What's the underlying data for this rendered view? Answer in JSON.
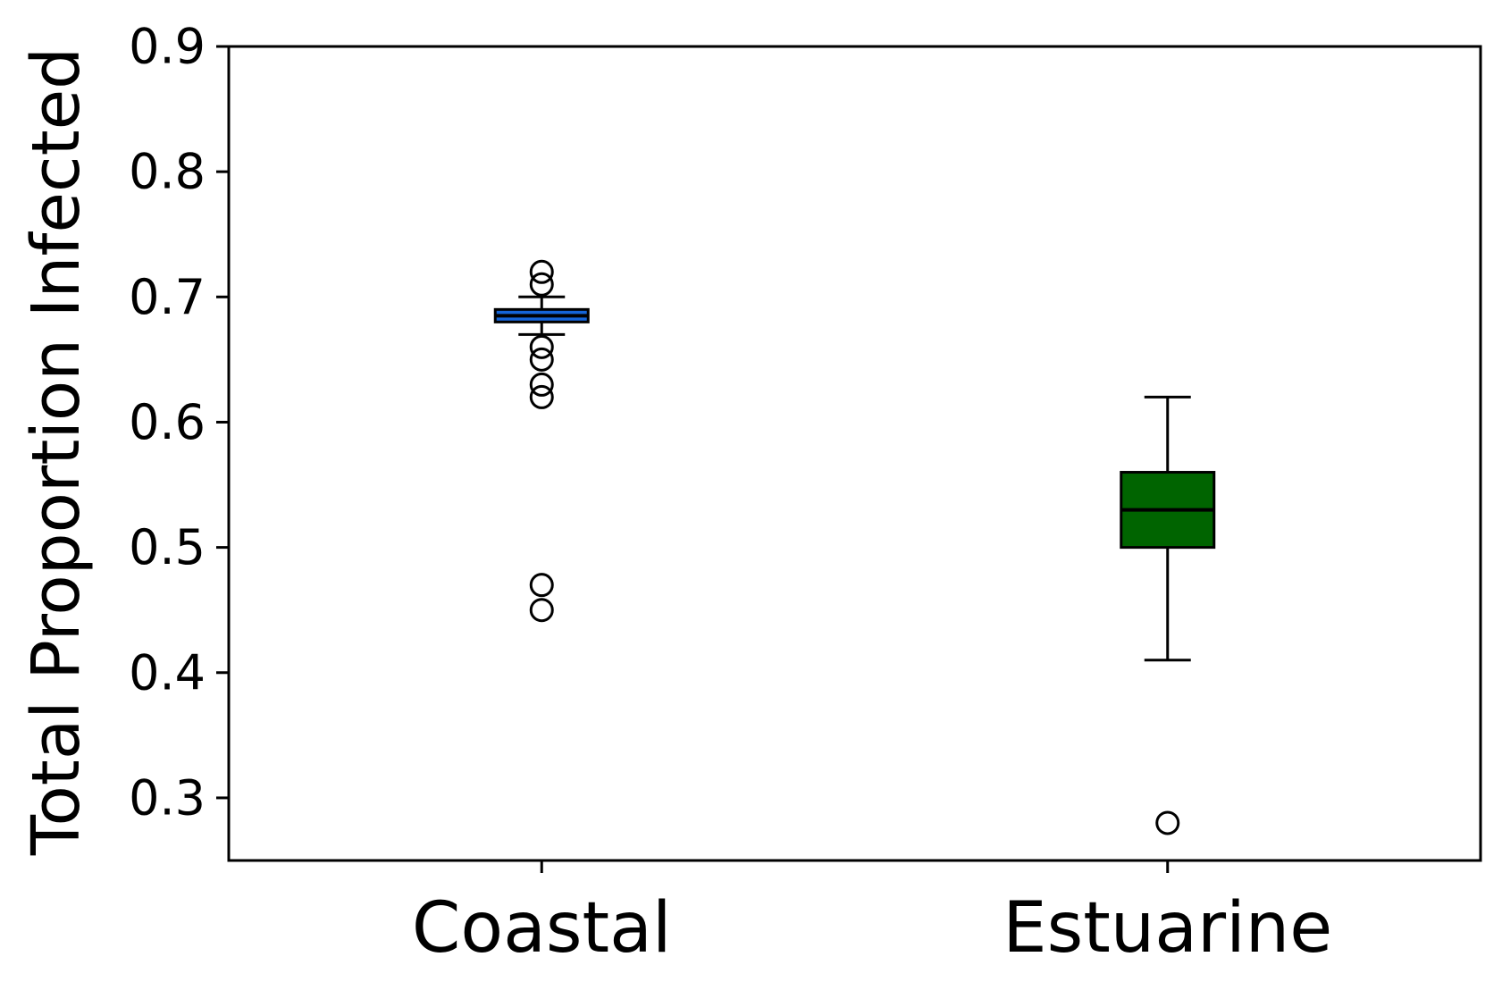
{
  "chart_data": {
    "type": "box",
    "title": "",
    "xlabel": "",
    "ylabel": "Total Proportion Infected",
    "ylim": [
      0.25,
      0.9
    ],
    "yticks": [
      0.3,
      0.4,
      0.5,
      0.6,
      0.7,
      0.8,
      0.9
    ],
    "ytick_labels": [
      "0.3",
      "0.4",
      "0.5",
      "0.6",
      "0.7",
      "0.8",
      "0.9"
    ],
    "grid": false,
    "categories": [
      "Coastal",
      "Estuarine"
    ],
    "boxes": [
      {
        "category": "Coastal",
        "color": "#1565d8",
        "whisker_low": 0.67,
        "q1": 0.68,
        "median": 0.685,
        "q3": 0.69,
        "whisker_high": 0.7,
        "outliers": [
          0.72,
          0.71,
          0.66,
          0.65,
          0.63,
          0.62,
          0.47,
          0.45
        ]
      },
      {
        "category": "Estuarine",
        "color": "#006400",
        "whisker_low": 0.41,
        "q1": 0.5,
        "median": 0.53,
        "q3": 0.56,
        "whisker_high": 0.62,
        "outliers": [
          0.28
        ]
      }
    ]
  }
}
